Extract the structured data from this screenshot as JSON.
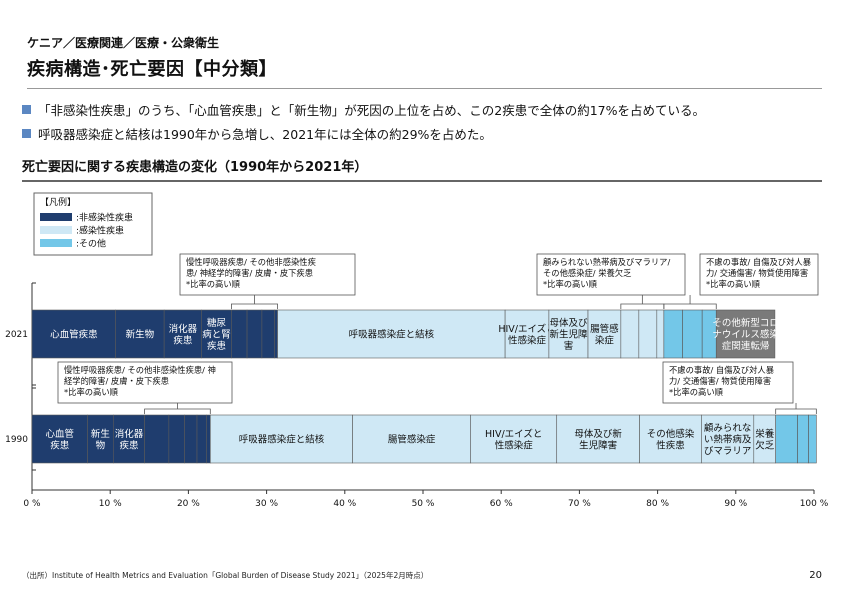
{
  "header": {
    "breadcrumb": "ケニア／医療関連／医療・公衆衛生",
    "title": "疾病構造･死亡要因【中分類】"
  },
  "summary": [
    "「非感染性疾患」のうち、「心血管疾患」と「新生物」が死因の上位を占め、この2疾患で全体の約17%を占めている。",
    "呼吸器感染症と結核は1990年から急増し、2021年には全体の約29%を占めた。"
  ],
  "chart_section_title": "死亡要因に関する疾患構造の変化（1990年から2021年）",
  "legend": {
    "title": "【凡例】",
    "items": [
      {
        "label": ":非感染性疾患",
        "color": "#1f3d6e"
      },
      {
        "label": ":感染性疾患",
        "color": "#cfe8f5"
      },
      {
        "label": ":その他",
        "color": "#73c7e8"
      }
    ]
  },
  "colors": {
    "ncd": "#1f3d6e",
    "infectious": "#cfe8f5",
    "other": "#73c7e8",
    "covid": "#7a7a7a",
    "border": "#5a5a5a"
  },
  "chart_data": {
    "type": "bar",
    "orientation": "horizontal",
    "stacked": true,
    "categories": [
      "2021",
      "1990"
    ],
    "xlim": [
      0,
      100
    ],
    "xticks": [
      "0 %",
      "10 %",
      "20 %",
      "30 %",
      "40 %",
      "50 %",
      "60 %",
      "70 %",
      "80 %",
      "90 %",
      "100 %"
    ],
    "series": [
      {
        "year": "2021",
        "segments": [
          {
            "label": "心血管疾患",
            "value": 10.7,
            "group": "ncd"
          },
          {
            "label": "新生物",
            "value": 6.2,
            "group": "ncd"
          },
          {
            "label": "消化器\n疾患",
            "value": 4.8,
            "group": "ncd"
          },
          {
            "label": "糖尿\n病と腎\n疾患",
            "value": 3.8,
            "group": "ncd"
          },
          {
            "label": "",
            "value": 2.0,
            "group": "ncd"
          },
          {
            "label": "",
            "value": 1.9,
            "group": "ncd"
          },
          {
            "label": "",
            "value": 1.6,
            "group": "ncd"
          },
          {
            "label": "",
            "value": 0.4,
            "group": "ncd"
          },
          {
            "label": "呼吸器感染症と結核",
            "value": 29.1,
            "group": "infectious"
          },
          {
            "label": "HIV/エイズと\n性感染症",
            "value": 5.6,
            "group": "infectious"
          },
          {
            "label": "母体及び\n新生児障\n害",
            "value": 5.0,
            "group": "infectious"
          },
          {
            "label": "腸管感\n染症",
            "value": 4.2,
            "group": "infectious"
          },
          {
            "label": "",
            "value": 2.3,
            "group": "infectious"
          },
          {
            "label": "",
            "value": 2.3,
            "group": "infectious"
          },
          {
            "label": "",
            "value": 0.9,
            "group": "infectious"
          },
          {
            "label": "",
            "value": 2.4,
            "group": "other"
          },
          {
            "label": "",
            "value": 2.5,
            "group": "other"
          },
          {
            "label": "",
            "value": 1.8,
            "group": "other"
          },
          {
            "label": "その他新型コロ\nナウイルス感染\n症関連転帰",
            "value": 7.5,
            "group": "covid"
          }
        ]
      },
      {
        "year": "1990",
        "segments": [
          {
            "label": "心血管\n疾患",
            "value": 7.1,
            "group": "ncd"
          },
          {
            "label": "新生\n物",
            "value": 3.3,
            "group": "ncd"
          },
          {
            "label": "消化器\n疾患",
            "value": 4.0,
            "group": "ncd"
          },
          {
            "label": "",
            "value": 3.1,
            "group": "ncd"
          },
          {
            "label": "",
            "value": 2.0,
            "group": "ncd"
          },
          {
            "label": "",
            "value": 1.6,
            "group": "ncd"
          },
          {
            "label": "",
            "value": 1.2,
            "group": "ncd"
          },
          {
            "label": "",
            "value": 0.5,
            "group": "ncd"
          },
          {
            "label": "呼吸器感染症と結核",
            "value": 18.2,
            "group": "infectious"
          },
          {
            "label": "腸管感染症",
            "value": 15.1,
            "group": "infectious"
          },
          {
            "label": "HIV/エイズと\n性感染症",
            "value": 11.0,
            "group": "infectious"
          },
          {
            "label": "母体及び新\n生児障害",
            "value": 10.6,
            "group": "infectious"
          },
          {
            "label": "その他感染\n性疾患",
            "value": 7.9,
            "group": "infectious"
          },
          {
            "label": "顧みられな\nい熱帯病及\nびマラリア",
            "value": 6.7,
            "group": "infectious"
          },
          {
            "label": "栄養\n欠乏",
            "value": 2.8,
            "group": "infectious"
          },
          {
            "label": "",
            "value": 2.8,
            "group": "other"
          },
          {
            "label": "",
            "value": 1.4,
            "group": "other"
          },
          {
            "label": "",
            "value": 1.0,
            "group": "other"
          }
        ]
      }
    ],
    "annotations": [
      {
        "id": "ann-2021-ncd",
        "text": [
          "慢性呼吸器疾患/ その他非感染性疾",
          "患/ 神経学的障害/ 皮膚・皮下疾患",
          "*比率の高い順"
        ]
      },
      {
        "id": "ann-2021-inf",
        "text": [
          "顧みられない熱帯病及びマラリア/",
          "その他感染症/ 栄養欠乏",
          "*比率の高い順"
        ]
      },
      {
        "id": "ann-2021-oth",
        "text": [
          "不慮の事故/ 自傷及び対人暴",
          "力/ 交通傷害/ 物質使用障害",
          "*比率の高い順"
        ]
      },
      {
        "id": "ann-1990-ncd",
        "text": [
          "慢性呼吸器疾患/ その他非感染性疾患/ 神",
          "経学的障害/ 皮膚・皮下疾患",
          "*比率の高い順"
        ]
      },
      {
        "id": "ann-1990-oth",
        "text": [
          "不慮の事故/ 自傷及び対人暴",
          "力/ 交通傷害/ 物質使用障害",
          "*比率の高い順"
        ]
      }
    ]
  },
  "footer": {
    "source": "（出所）Institute of Health Metrics and Evaluation「Global Burden of Disease Study 2021」（2025年2月時点）",
    "page_number": "20"
  }
}
